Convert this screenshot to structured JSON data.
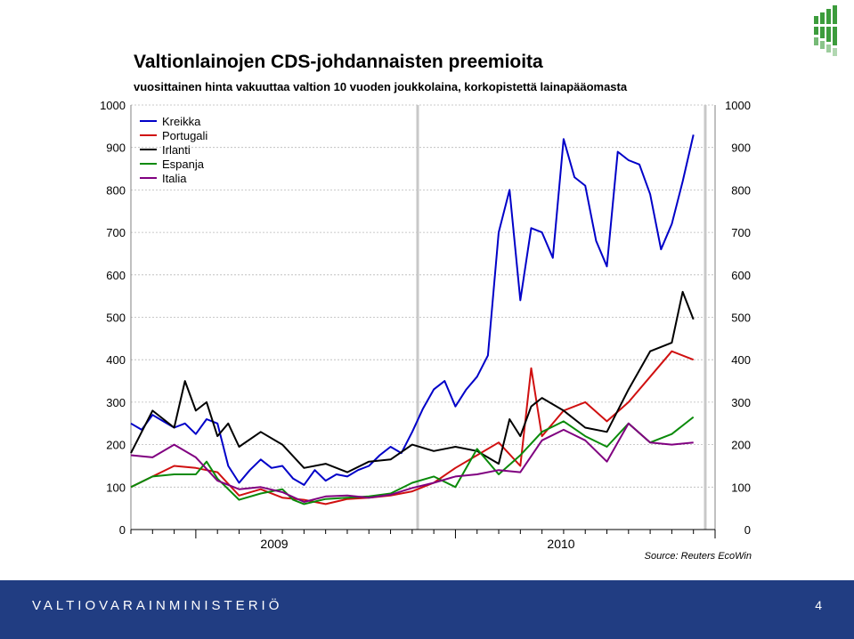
{
  "title": "Valtionlainojen CDS-johdannaisten preemioita",
  "subtitle": "vuosittainen hinta vakuuttaa valtion 10 vuoden joukkolaina, korkopistettä lainapääomasta",
  "source": "Source: Reuters EcoWin",
  "footer": {
    "ministry": "VALTIOVARAINMINISTERIÖ",
    "page_number": "4"
  },
  "colors": {
    "footer_bg": "#213d82",
    "logo": "#3c9c3c"
  },
  "chart_data": {
    "type": "line",
    "title": "Valtionlainojen CDS-johdannaisten preemioita",
    "ylim": [
      0,
      1000
    ],
    "yticks": [
      0,
      100,
      200,
      300,
      400,
      500,
      600,
      700,
      800,
      900,
      1000
    ],
    "y_tick_labels": [
      "0",
      "100",
      "200",
      "300",
      "400",
      "500",
      "600",
      "700",
      "800",
      "900",
      "1000"
    ],
    "x_tick_labels": [
      "2009",
      "2010"
    ],
    "xlim": [
      0,
      27
    ],
    "x_unit": "months since 2008-10",
    "grid": true,
    "legend": "top-left",
    "series": [
      {
        "name": "Kreikka",
        "color": "#0000c8",
        "x": [
          0,
          0.5,
          1,
          1.5,
          2,
          2.5,
          3,
          3.5,
          4,
          4.5,
          5,
          5.5,
          6,
          6.5,
          7,
          7.5,
          8,
          8.5,
          9,
          9.5,
          10,
          10.5,
          11,
          11.5,
          12,
          12.5,
          13,
          13.5,
          14,
          14.5,
          15,
          15.5,
          16,
          16.5,
          17,
          17.5,
          18,
          18.5,
          19,
          19.5,
          20,
          20.5,
          21,
          21.5,
          22,
          22.5,
          23,
          23.5,
          24,
          24.5,
          25,
          25.5,
          26
        ],
        "y": [
          250,
          235,
          270,
          255,
          240,
          250,
          225,
          260,
          250,
          150,
          110,
          140,
          165,
          145,
          150,
          120,
          105,
          140,
          115,
          130,
          125,
          140,
          150,
          175,
          195,
          180,
          230,
          285,
          330,
          350,
          290,
          330,
          360,
          410,
          700,
          800,
          540,
          710,
          700,
          640,
          920,
          830,
          810,
          680,
          620,
          890,
          870,
          860,
          790,
          660,
          720,
          820,
          930
        ]
      },
      {
        "name": "Portugali",
        "color": "#d01010",
        "x": [
          0,
          1,
          2,
          3,
          4,
          5,
          6,
          7,
          8,
          9,
          10,
          11,
          12,
          13,
          14,
          15,
          16,
          17,
          18,
          18.5,
          19,
          20,
          21,
          22,
          23,
          24,
          25,
          26
        ],
        "y": [
          100,
          125,
          150,
          145,
          135,
          80,
          95,
          75,
          70,
          60,
          72,
          75,
          80,
          90,
          110,
          145,
          175,
          205,
          150,
          380,
          220,
          280,
          300,
          255,
          300,
          360,
          420,
          400
        ]
      },
      {
        "name": "Irlanti",
        "color": "#000000",
        "x": [
          0,
          1,
          2,
          2.5,
          3,
          3.5,
          4,
          4.5,
          5,
          6,
          7,
          8,
          9,
          10,
          11,
          12,
          13,
          14,
          15,
          16,
          17,
          17.5,
          18,
          18.5,
          19,
          20,
          21,
          22,
          23,
          24,
          25,
          25.5,
          26
        ],
        "y": [
          180,
          280,
          240,
          350,
          280,
          300,
          220,
          250,
          195,
          230,
          200,
          145,
          155,
          135,
          160,
          165,
          200,
          185,
          195,
          185,
          155,
          260,
          220,
          290,
          310,
          280,
          240,
          230,
          330,
          420,
          440,
          560,
          495
        ]
      },
      {
        "name": "Espanja",
        "color": "#0a8a0a",
        "x": [
          0,
          1,
          2,
          3,
          3.5,
          4,
          5,
          6,
          7,
          7.5,
          8,
          9,
          10,
          11,
          12,
          13,
          14,
          15,
          16,
          17,
          18,
          19,
          20,
          21,
          22,
          23,
          24,
          25,
          26
        ],
        "y": [
          100,
          125,
          130,
          130,
          160,
          120,
          70,
          85,
          95,
          70,
          60,
          72,
          75,
          78,
          85,
          110,
          125,
          100,
          190,
          130,
          175,
          230,
          255,
          220,
          195,
          250,
          205,
          225,
          265
        ]
      },
      {
        "name": "Italia",
        "color": "#800080",
        "x": [
          0,
          1,
          2,
          3,
          4,
          5,
          6,
          7,
          8,
          9,
          10,
          11,
          12,
          13,
          14,
          15,
          16,
          17,
          18,
          19,
          20,
          21,
          22,
          23,
          24,
          25,
          26
        ],
        "y": [
          175,
          170,
          200,
          170,
          115,
          95,
          100,
          88,
          65,
          78,
          80,
          75,
          82,
          98,
          110,
          125,
          130,
          140,
          135,
          210,
          235,
          210,
          160,
          250,
          205,
          200,
          205
        ]
      }
    ]
  }
}
